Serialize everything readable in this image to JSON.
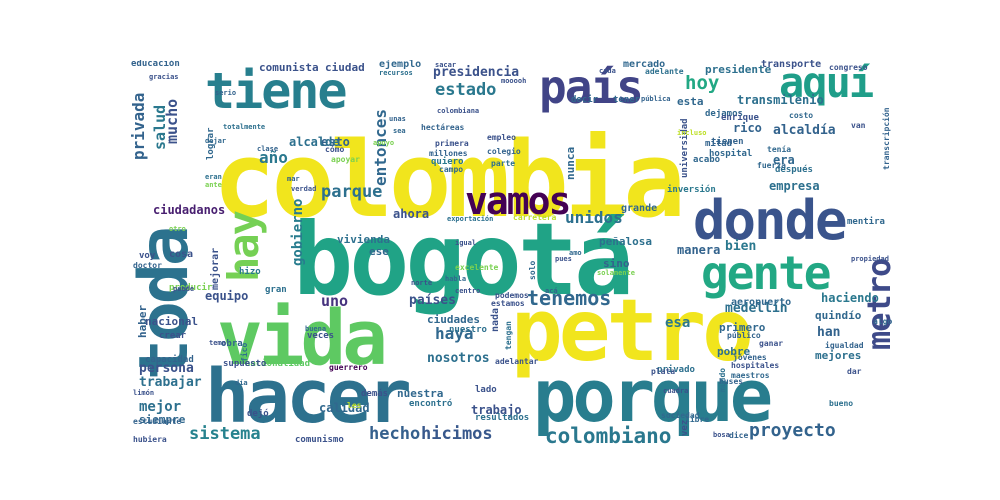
{
  "words": [
    {
      "text": "colombia",
      "color": "#f1e51d"
    },
    {
      "text": "bogotá",
      "color": "#20a386"
    },
    {
      "text": "hacer",
      "color": "#2d718e"
    },
    {
      "text": "porque",
      "color": "#287d8e"
    },
    {
      "text": "petro",
      "color": "#f1e51d"
    },
    {
      "text": "vida",
      "color": "#5ec962"
    },
    {
      "text": "toda",
      "color": "#2c728e"
    },
    {
      "text": "donde",
      "color": "#3a548c"
    },
    {
      "text": "gente",
      "color": "#22a884"
    },
    {
      "text": "tiene",
      "color": "#277f8e"
    },
    {
      "text": "país",
      "color": "#414487"
    },
    {
      "text": "aquí",
      "color": "#1f9e89"
    },
    {
      "text": "vamos",
      "color": "#440154"
    },
    {
      "text": "hay",
      "color": "#75d054"
    },
    {
      "text": "metro",
      "color": "#3e4a89"
    },
    {
      "text": "tenemos",
      "color": "#31688e"
    },
    {
      "text": "colombiano",
      "color": "#2a788e"
    },
    {
      "text": "proyecto",
      "color": "#33638d"
    },
    {
      "text": "hoy",
      "color": "#22a884"
    },
    {
      "text": "hicimos",
      "color": "#38588c"
    },
    {
      "text": "hecho",
      "color": "#35608d"
    },
    {
      "text": "sistema",
      "color": "#26828e"
    },
    {
      "text": "parque",
      "color": "#2d708e"
    },
    {
      "text": "unidos",
      "color": "#2d708e"
    },
    {
      "text": "haya",
      "color": "#31688e"
    },
    {
      "text": "estado",
      "color": "#2a788e"
    },
    {
      "text": "presidencia",
      "color": "#3b528b"
    },
    {
      "text": "entonces",
      "color": "#31688e"
    },
    {
      "text": "privada",
      "color": "#33638d"
    },
    {
      "text": "mucho",
      "color": "#3b528b"
    },
    {
      "text": "salud",
      "color": "#2a788e"
    },
    {
      "text": "año",
      "color": "#2a788e"
    },
    {
      "text": "gobierno",
      "color": "#287c8e"
    },
    {
      "text": "ciudadanos",
      "color": "#481f70"
    },
    {
      "text": "mejor",
      "color": "#2d708e"
    },
    {
      "text": "persona",
      "color": "#3b528b"
    },
    {
      "text": "trabajar",
      "color": "#2d708e"
    },
    {
      "text": "equipo",
      "color": "#3b528b"
    },
    {
      "text": "nosotros",
      "color": "#2d708e"
    },
    {
      "text": "ciudades",
      "color": "#31688e"
    },
    {
      "text": "países",
      "color": "#3b528b"
    },
    {
      "text": "uno",
      "color": "#46337e"
    },
    {
      "text": "esa",
      "color": "#2a788e"
    },
    {
      "text": "medellín",
      "color": "#2d708e"
    },
    {
      "text": "bien",
      "color": "#2a788e"
    },
    {
      "text": "manera",
      "color": "#33638d"
    },
    {
      "text": "empresa",
      "color": "#2d708e"
    },
    {
      "text": "alcaldía",
      "color": "#33638d"
    },
    {
      "text": "transmilenio",
      "color": "#2d708e"
    },
    {
      "text": "rico",
      "color": "#33638d"
    },
    {
      "text": "era",
      "color": "#31688e"
    },
    {
      "text": "han",
      "color": "#33638d"
    },
    {
      "text": "haciendo",
      "color": "#2a788e"
    },
    {
      "text": "ahora",
      "color": "#3b528b"
    },
    {
      "text": "esto",
      "color": "#33638d"
    },
    {
      "text": "alcalde",
      "color": "#2d708e"
    },
    {
      "text": "calidad",
      "color": "#31688e"
    },
    {
      "text": "trabajo",
      "color": "#3b528b"
    },
    {
      "text": "nuestra",
      "color": "#31688e"
    },
    {
      "text": "ciudad",
      "color": "#3b528b"
    },
    {
      "text": "comunista",
      "color": "#3b528b"
    },
    {
      "text": "ejemplo",
      "color": "#31688e"
    },
    {
      "text": "presidente",
      "color": "#2d708e"
    },
    {
      "text": "mercado",
      "color": "#31688e"
    },
    {
      "text": "transporte",
      "color": "#3b528b"
    },
    {
      "text": "esta",
      "color": "#31688e"
    },
    {
      "text": "nunca",
      "color": "#31688e"
    },
    {
      "text": "vivienda",
      "color": "#2d708e"
    },
    {
      "text": "siempre",
      "color": "#31688e"
    },
    {
      "text": "nacional",
      "color": "#3b528b"
    },
    {
      "text": "haber",
      "color": "#33638d"
    },
    {
      "text": "pobre",
      "color": "#2d708e"
    },
    {
      "text": "mejores",
      "color": "#2d708e"
    },
    {
      "text": "quindío",
      "color": "#31688e"
    },
    {
      "text": "primero",
      "color": "#31688e"
    },
    {
      "text": "sino",
      "color": "#33638d"
    },
    {
      "text": "peñalosa",
      "color": "#2d708e"
    },
    {
      "text": "grande",
      "color": "#31688e"
    },
    {
      "text": "educación",
      "color": "#33638d"
    },
    {
      "text": "ese",
      "color": "#31688e"
    },
    {
      "text": "nada",
      "color": "#3b528b"
    },
    {
      "text": "aeropuerto",
      "color": "#31688e"
    },
    {
      "text": "mejorar",
      "color": "#3b528b"
    },
    {
      "text": "cosa",
      "color": "#3b528b"
    },
    {
      "text": "mitad",
      "color": "#33638d"
    },
    {
      "text": "hospital",
      "color": "#31688e"
    },
    {
      "text": "tienen",
      "color": "#33638d"
    },
    {
      "text": "dejamos",
      "color": "#31688e"
    },
    {
      "text": "enrique",
      "color": "#3b528b"
    },
    {
      "text": "universidad",
      "color": "#3b528b"
    },
    {
      "text": "acabó",
      "color": "#31688e"
    },
    {
      "text": "inversión",
      "color": "#2a788e"
    },
    {
      "text": "después",
      "color": "#2d708e"
    },
    {
      "text": "mentira",
      "color": "#31688e"
    },
    {
      "text": "lado",
      "color": "#3b528b"
    },
    {
      "text": "resultados",
      "color": "#2d708e"
    },
    {
      "text": "encontró",
      "color": "#2d708e"
    },
    {
      "text": "dejó",
      "color": "#3b528b"
    },
    {
      "text": "hubiera",
      "color": "#3b528b"
    },
    {
      "text": "estudiante",
      "color": "#33638d"
    },
    {
      "text": "comunismo",
      "color": "#3b528b"
    },
    {
      "text": "nacionalidad",
      "color": "#5ec962"
    },
    {
      "text": "capacidad",
      "color": "#33638d"
    },
    {
      "text": "crear",
      "color": "#3b528b"
    },
    {
      "text": "producir",
      "color": "#7ad151"
    },
    {
      "text": "doctor",
      "color": "#33638d"
    },
    {
      "text": "voy",
      "color": "#3b528b"
    },
    {
      "text": "hizo",
      "color": "#2a788e"
    },
    {
      "text": "gran",
      "color": "#2d708e"
    },
    {
      "text": "veces",
      "color": "#3b528b"
    },
    {
      "text": "obra",
      "color": "#33638d"
    },
    {
      "text": "supuesto",
      "color": "#3b528b"
    },
    {
      "text": "guerrero",
      "color": "#440154"
    },
    {
      "text": "demás",
      "color": "#3b528b"
    },
    {
      "text": "adelante",
      "color": "#2d708e"
    },
    {
      "text": "decir",
      "color": "#31688e"
    },
    {
      "text": "tener",
      "color": "#31688e"
    },
    {
      "text": "jóvenes",
      "color": "#33638d"
    },
    {
      "text": "hospitales",
      "color": "#3b528b"
    },
    {
      "text": "maestros",
      "color": "#31688e"
    },
    {
      "text": "público",
      "color": "#33638d"
    },
    {
      "text": "ganar",
      "color": "#3b528b"
    },
    {
      "text": "buses",
      "color": "#33638d"
    },
    {
      "text": "igualdad",
      "color": "#33638d"
    },
    {
      "text": "privado",
      "color": "#2d708e"
    },
    {
      "text": "algo",
      "color": "#31688e"
    },
    {
      "text": "excelente",
      "color": "#7ad151"
    },
    {
      "text": "solamente",
      "color": "#7ad151"
    },
    {
      "text": "congreso",
      "color": "#3b528b"
    },
    {
      "text": "costo",
      "color": "#31688e"
    },
    {
      "text": "van",
      "color": "#3b528b"
    },
    {
      "text": "transcripción",
      "color": "#33638d"
    },
    {
      "text": "tenía",
      "color": "#31688e"
    },
    {
      "text": "fuerza",
      "color": "#31688e"
    },
    {
      "text": "colegio",
      "color": "#33638d"
    },
    {
      "text": "empleo",
      "color": "#3b528b"
    },
    {
      "text": "primera",
      "color": "#3b528b"
    },
    {
      "text": "millones",
      "color": "#33638d"
    },
    {
      "text": "hectáreas",
      "color": "#33638d"
    },
    {
      "text": "quiero",
      "color": "#2a788e"
    },
    {
      "text": "campo",
      "color": "#31688e"
    },
    {
      "text": "parte",
      "color": "#2d708e"
    },
    {
      "text": "exportación",
      "color": "#2d708e"
    },
    {
      "text": "carretera",
      "color": "#bddf26"
    },
    {
      "text": "podemos",
      "color": "#3b528b"
    },
    {
      "text": "estamos",
      "color": "#3b528b"
    },
    {
      "text": "nuestro",
      "color": "#2d708e"
    },
    {
      "text": "tengan",
      "color": "#2d708e"
    },
    {
      "text": "adelantar",
      "color": "#3b528b"
    },
    {
      "text": "sociedad",
      "color": "#31688e"
    },
    {
      "text": "plata",
      "color": "#3b528b"
    },
    {
      "text": "dice",
      "color": "#33638d"
    },
    {
      "text": "bueno",
      "color": "#2d708e"
    },
    {
      "text": "bosa",
      "color": "#3b528b"
    },
    {
      "text": "cuadra",
      "color": "#3b528b"
    },
    {
      "text": "dar",
      "color": "#3b528b"
    },
    {
      "text": "mundo",
      "color": "#2d708e"
    },
    {
      "text": "vez",
      "color": "#3b528b"
    },
    {
      "text": "libre",
      "color": "#31688e"
    },
    {
      "text": "gracias",
      "color": "#3b528b"
    },
    {
      "text": "serio",
      "color": "#33638d"
    },
    {
      "text": "totalmente",
      "color": "#2d708e"
    },
    {
      "text": "lograr",
      "color": "#31688e"
    },
    {
      "text": "clase",
      "color": "#33638d"
    },
    {
      "text": "mar",
      "color": "#33638d"
    },
    {
      "text": "apoyar",
      "color": "#7ad151"
    },
    {
      "text": "cómo",
      "color": "#3b528b"
    },
    {
      "text": "dejar",
      "color": "#31688e"
    },
    {
      "text": "eran",
      "color": "#2d708e"
    },
    {
      "text": "ante",
      "color": "#7ad151"
    },
    {
      "text": "verdad",
      "color": "#3b528b"
    },
    {
      "text": "otro",
      "color": "#7ad151"
    },
    {
      "text": "tema",
      "color": "#3b528b"
    },
    {
      "text": "buena",
      "color": "#31688e"
    },
    {
      "text": "limón",
      "color": "#3b528b"
    },
    {
      "text": "día",
      "color": "#31688e"
    },
    {
      "text": "les",
      "color": "#bddf26"
    },
    {
      "text": "fico",
      "color": "#2d708e"
    },
    {
      "text": "norte",
      "color": "#3b528b"
    },
    {
      "text": "centro",
      "color": "#3b528b"
    },
    {
      "text": "acá",
      "color": "#33638d"
    },
    {
      "text": "solo",
      "color": "#31688e"
    },
    {
      "text": "amo",
      "color": "#31688e"
    },
    {
      "text": "habla",
      "color": "#31688e"
    },
    {
      "text": "igual",
      "color": "#3b528b"
    },
    {
      "text": "puede",
      "color": "#3b528b"
    },
    {
      "text": "recursos",
      "color": "#2d708e"
    },
    {
      "text": "sacar",
      "color": "#3b528b"
    },
    {
      "text": "mooooh",
      "color": "#3b528b"
    },
    {
      "text": "unas",
      "color": "#33638d"
    },
    {
      "text": "sea",
      "color": "#31688e"
    },
    {
      "text": "colombiana",
      "color": "#3b528b"
    },
    {
      "text": "pública",
      "color": "#33638d"
    },
    {
      "text": "apoyo",
      "color": "#7ad151"
    },
    {
      "text": "pues",
      "color": "#3b528b"
    },
    {
      "text": "propiedad",
      "color": "#3b528b"
    },
    {
      "text": "cada",
      "color": "#3b528b"
    },
    {
      "text": "incluso",
      "color": "#bddf26"
    }
  ]
}
